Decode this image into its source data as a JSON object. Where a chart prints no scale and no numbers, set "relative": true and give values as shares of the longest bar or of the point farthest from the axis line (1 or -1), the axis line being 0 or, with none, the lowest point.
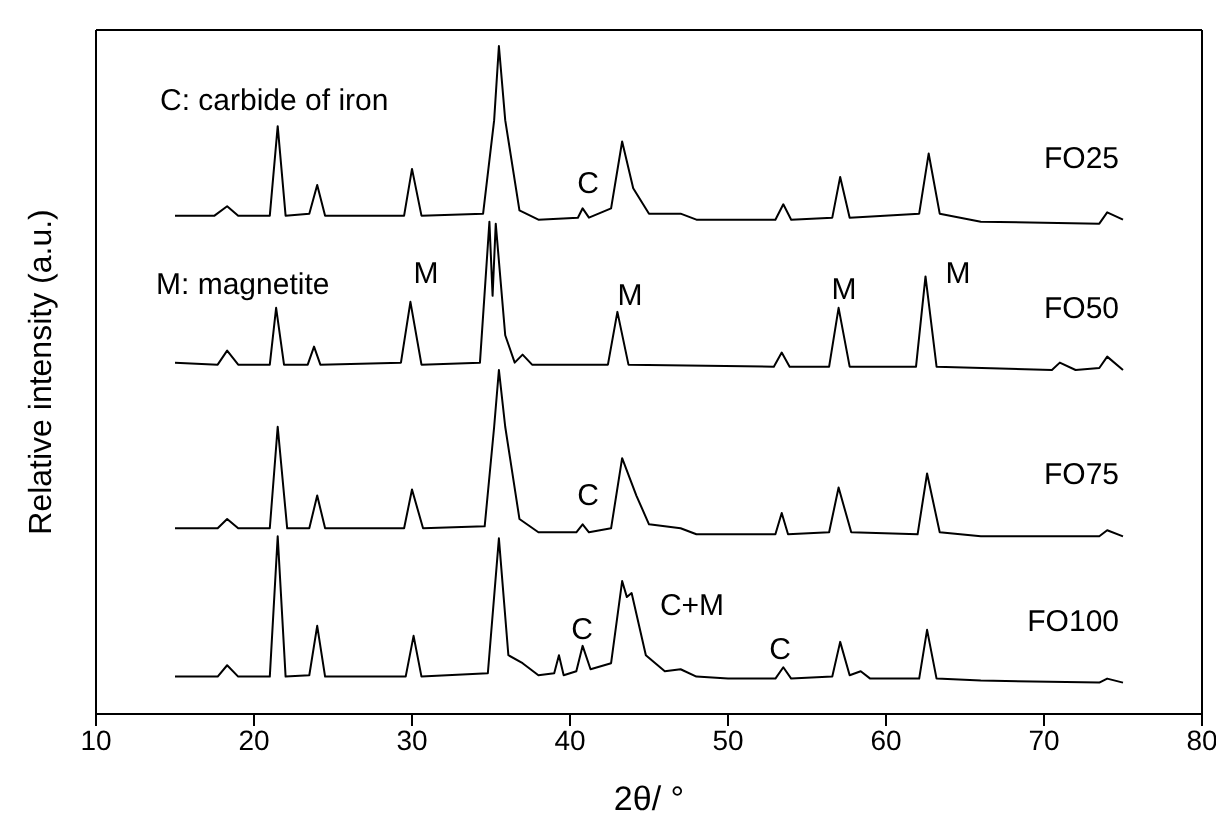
{
  "chart_data": {
    "type": "line",
    "relative": true,
    "xlabel": "2θ/ °",
    "ylabel": "Relative intensity (a.u.)",
    "xlim": [
      10,
      80
    ],
    "xticks": [
      10,
      20,
      30,
      40,
      50,
      60,
      70,
      80
    ],
    "marker": "none",
    "line_style": "solid",
    "annotations": [
      "C: carbide of iron",
      "M: magnetite",
      "C",
      "M",
      "M",
      "M",
      "M",
      "C",
      "C",
      "C+M",
      "C"
    ],
    "series": [
      {
        "name": "FO25",
        "color": "#000000",
        "x": [
          15,
          17.5,
          18.3,
          19,
          21,
          21.5,
          22,
          23.5,
          24,
          24.5,
          29.5,
          30,
          30.6,
          34.5,
          35.2,
          35.5,
          35.9,
          36.8,
          38,
          40.5,
          40.8,
          41.2,
          42.6,
          43.3,
          44,
          45,
          47,
          48,
          53,
          53.5,
          54,
          56.6,
          57.1,
          57.7,
          62.1,
          62.7,
          63.4,
          66,
          73.5,
          74,
          75
        ],
        "values": [
          0.746,
          0.746,
          0.76,
          0.746,
          0.746,
          0.88,
          0.746,
          0.749,
          0.792,
          0.746,
          0.746,
          0.816,
          0.746,
          0.749,
          0.889,
          1.0,
          0.889,
          0.754,
          0.74,
          0.743,
          0.757,
          0.743,
          0.757,
          0.857,
          0.787,
          0.749,
          0.749,
          0.74,
          0.74,
          0.763,
          0.74,
          0.743,
          0.804,
          0.743,
          0.749,
          0.839,
          0.749,
          0.737,
          0.734,
          0.751,
          0.74
        ]
      },
      {
        "name": "FO50",
        "color": "#000000",
        "x": [
          15,
          17.7,
          18.3,
          19,
          21,
          21.4,
          21.9,
          23.4,
          23.8,
          24.2,
          29.3,
          29.9,
          30.6,
          34.3,
          34.9,
          35.1,
          35.3,
          35.9,
          36.5,
          37,
          37.6,
          42.4,
          43,
          43.7,
          52.9,
          53.4,
          53.9,
          56.4,
          57,
          57.7,
          61.9,
          62.5,
          63.2,
          70.5,
          71,
          72,
          73.5,
          74,
          75
        ],
        "values": [
          0.526,
          0.523,
          0.544,
          0.523,
          0.523,
          0.608,
          0.523,
          0.523,
          0.55,
          0.523,
          0.526,
          0.617,
          0.523,
          0.526,
          0.737,
          0.626,
          0.734,
          0.567,
          0.526,
          0.538,
          0.523,
          0.523,
          0.602,
          0.523,
          0.52,
          0.541,
          0.52,
          0.52,
          0.608,
          0.52,
          0.52,
          0.655,
          0.52,
          0.515,
          0.526,
          0.515,
          0.518,
          0.535,
          0.515
        ]
      },
      {
        "name": "FO75",
        "color": "#000000",
        "x": [
          15,
          17.7,
          18.3,
          19,
          21,
          21.5,
          22.1,
          23.5,
          24,
          24.5,
          29.5,
          30,
          30.7,
          34.6,
          35.2,
          35.5,
          35.9,
          36.8,
          38,
          40.4,
          40.8,
          41.2,
          42.6,
          43.3,
          44.2,
          45,
          47,
          48,
          50,
          53,
          53.4,
          53.8,
          56.4,
          57,
          57.8,
          62,
          62.6,
          63.4,
          66,
          73.5,
          74,
          75
        ],
        "values": [
          0.278,
          0.278,
          0.292,
          0.278,
          0.278,
          0.43,
          0.278,
          0.278,
          0.327,
          0.278,
          0.278,
          0.336,
          0.278,
          0.281,
          0.43,
          0.515,
          0.43,
          0.292,
          0.272,
          0.272,
          0.284,
          0.272,
          0.278,
          0.383,
          0.327,
          0.284,
          0.278,
          0.269,
          0.269,
          0.269,
          0.301,
          0.269,
          0.272,
          0.339,
          0.272,
          0.269,
          0.36,
          0.272,
          0.266,
          0.266,
          0.275,
          0.266
        ]
      },
      {
        "name": "FO100",
        "color": "#000000",
        "x": [
          15,
          17.7,
          18.3,
          19,
          21,
          21.5,
          22,
          23.5,
          24,
          24.5,
          29.6,
          30.1,
          30.6,
          34.8,
          35.5,
          36.1,
          37,
          38,
          39,
          39.3,
          39.6,
          40.4,
          40.8,
          41.3,
          42.6,
          43.3,
          43.6,
          43.9,
          44.8,
          46,
          47,
          48,
          50,
          53,
          53.5,
          54,
          56.6,
          57.1,
          57.7,
          58.4,
          59,
          62.1,
          62.6,
          63.2,
          66,
          73.5,
          74,
          75
        ],
        "values": [
          0.056,
          0.056,
          0.073,
          0.056,
          0.056,
          0.266,
          0.056,
          0.058,
          0.132,
          0.056,
          0.056,
          0.117,
          0.056,
          0.061,
          0.263,
          0.088,
          0.076,
          0.058,
          0.061,
          0.088,
          0.058,
          0.064,
          0.102,
          0.067,
          0.076,
          0.199,
          0.175,
          0.181,
          0.088,
          0.064,
          0.067,
          0.056,
          0.053,
          0.053,
          0.07,
          0.053,
          0.056,
          0.108,
          0.058,
          0.064,
          0.053,
          0.053,
          0.126,
          0.053,
          0.05,
          0.047,
          0.053,
          0.047
        ]
      }
    ]
  }
}
